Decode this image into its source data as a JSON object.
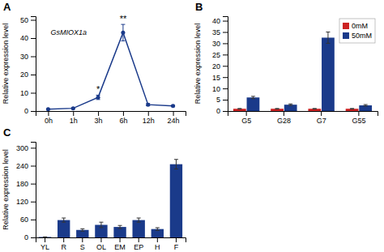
{
  "chart_data": [
    {
      "type": "line",
      "title": "A",
      "categories": [
        "0h",
        "1h",
        "3h",
        "6h",
        "12h",
        "24h"
      ],
      "values": [
        1.0,
        1.5,
        7.5,
        43.0,
        3.5,
        2.8
      ],
      "errors": [
        0.2,
        0.3,
        1.2,
        4.5,
        0.6,
        0.4
      ],
      "color": "#1a3a8a",
      "marker": "circle",
      "y_label": "Relative expression level",
      "ylim": [
        0,
        52
      ],
      "yticks": [
        0,
        10,
        20,
        30,
        40,
        50
      ],
      "annotations": [
        {
          "text": "GsMIOX1a"
        },
        {
          "text": "*",
          "category": "3h"
        },
        {
          "text": "**",
          "category": "6h"
        }
      ],
      "grid": false
    },
    {
      "type": "bar",
      "title": "B",
      "categories": [
        "G5",
        "G28",
        "G7",
        "G55"
      ],
      "series": [
        {
          "name": "0mM",
          "color": "#cc2222",
          "values": [
            1.0,
            1.0,
            1.0,
            1.0
          ],
          "errors": [
            0.12,
            0.12,
            0.12,
            0.12
          ]
        },
        {
          "name": "50mM",
          "color": "#1a3a8a",
          "values": [
            6.0,
            2.8,
            32.5,
            2.5
          ],
          "errors": [
            0.5,
            0.35,
            2.5,
            0.35
          ]
        }
      ],
      "y_label": "Relative expression level",
      "ylim": [
        0,
        42
      ],
      "yticks": [
        0,
        5,
        10,
        15,
        20,
        25,
        30,
        35,
        40
      ],
      "legend": "top-right",
      "grid": false
    },
    {
      "type": "bar",
      "title": "C",
      "categories": [
        "YL",
        "R",
        "S",
        "OL",
        "EM",
        "EP",
        "H",
        "F"
      ],
      "values": [
        1.5,
        58.0,
        25.0,
        42.0,
        35.0,
        58.0,
        28.0,
        245.0
      ],
      "errors": [
        0.3,
        7.0,
        4.0,
        9.0,
        5.0,
        7.0,
        4.5,
        16.0
      ],
      "color": "#1a3a8a",
      "y_label": "Relative expression level",
      "ylim": [
        0,
        320
      ],
      "yticks": [
        0,
        60,
        120,
        180,
        240,
        300
      ],
      "grid": false
    }
  ]
}
